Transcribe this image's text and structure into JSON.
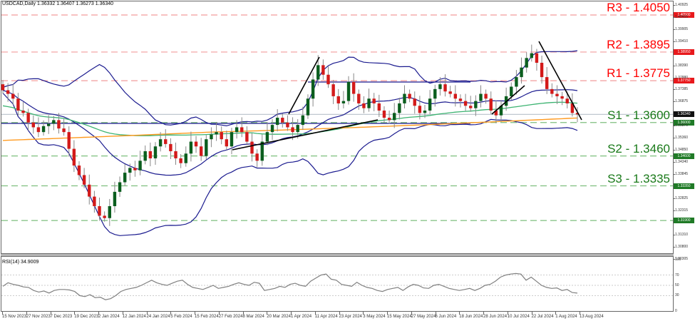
{
  "header": {
    "symbol_line": "USDCAD,Daily  1.36332 1.36407 1.36273 1.36340"
  },
  "rsi_header": "RSI(14) 34.9009",
  "colors": {
    "resistance": "#ff0000",
    "resistance_line": "#f29c9c",
    "support": "#1a7a1a",
    "support_line": "#7fbf7f",
    "bull": "#0b5e1e",
    "bear": "#d31a1a",
    "bollinger": "#1b1b8f",
    "ma_green": "#3cb371",
    "ma_orange": "#ff9a1f",
    "trendline": "#000000",
    "current_price_line": "#c0c8d0",
    "rsi_line": "#808080"
  },
  "levels": [
    {
      "id": "R3",
      "label": "R3 - 1.4050",
      "price": 1.405,
      "type": "resistance",
      "tag": "1.40500"
    },
    {
      "id": "R2",
      "label": "R2 - 1.3895",
      "price": 1.3895,
      "type": "resistance",
      "tag": "1.38950"
    },
    {
      "id": "R1",
      "label": "R1 - 1.3775",
      "price": 1.3775,
      "type": "resistance",
      "tag": "1.37750"
    },
    {
      "id": "S1",
      "label": "S1 - 1.3600",
      "price": 1.36,
      "type": "support",
      "tag": "1.36000"
    },
    {
      "id": "S2",
      "label": "S2 - 1.3460",
      "price": 1.346,
      "type": "support",
      "tag": "1.34600"
    },
    {
      "id": "S3",
      "label": "S3 - 1.3335",
      "price": 1.3335,
      "type": "support",
      "tag": "1.33350"
    },
    {
      "id": "S4",
      "label": "",
      "price": 1.319,
      "type": "support",
      "tag": "1.31900"
    }
  ],
  "current_price": {
    "price": 1.3634,
    "tag": "1.36340"
  },
  "price_axis": [
    "1.40925",
    "1.40415",
    "1.39905",
    "1.39410",
    "1.38390",
    "1.37880",
    "1.37385",
    "1.36875",
    "1.35870",
    "1.35360",
    "1.34850",
    "1.34340",
    "1.33845",
    "1.32825",
    "1.32315",
    "1.31310",
    "1.30800",
    "1.30305"
  ],
  "rsi_axis": [
    "100",
    "70",
    "50",
    "30",
    "0"
  ],
  "date_axis": [
    "15 Nov 2023",
    "27 Nov 2023",
    "7 Dec 2023",
    "19 Dec 2023",
    "2 Jan 2024",
    "12 Jan 2024",
    "24 Jan 2024",
    "5 Feb 2024",
    "15 Feb 2024",
    "27 Feb 2024",
    "8 Mar 2024",
    "20 Mar 2024",
    "1 Apr 2024",
    "11 Apr 2024",
    "23 Apr 2024",
    "3 May 2024",
    "15 May 2024",
    "27 May 2024",
    "6 Jun 2024",
    "18 Jun 2024",
    "28 Jun 2024",
    "10 Jul 2024",
    "22 Jul 2024",
    "1 Aug 2024",
    "13 Aug 2024"
  ],
  "chart_data": {
    "type": "candlestick",
    "title": "USDCAD,Daily",
    "ohlc_last": {
      "open": 1.36332,
      "high": 1.36407,
      "low": 1.36273,
      "close": 1.3634
    },
    "ylim": [
      1.303,
      1.4092
    ],
    "x_range": [
      "15 Nov 2023",
      "16 Aug 2024"
    ],
    "support_resistance": [
      {
        "name": "R3",
        "value": 1.405
      },
      {
        "name": "R2",
        "value": 1.3895
      },
      {
        "name": "R1",
        "value": 1.3775
      },
      {
        "name": "S1",
        "value": 1.36
      },
      {
        "name": "S2",
        "value": 1.346
      },
      {
        "name": "S3",
        "value": 1.3335
      }
    ],
    "close_series": [
      1.3735,
      1.372,
      1.37,
      1.365,
      1.364,
      1.36,
      1.358,
      1.356,
      1.3585,
      1.3595,
      1.361,
      1.3575,
      1.356,
      1.349,
      1.342,
      1.338,
      1.334,
      1.329,
      1.325,
      1.321,
      1.32,
      1.325,
      1.331,
      1.335,
      1.339,
      1.341,
      1.34,
      1.344,
      1.348,
      1.345,
      1.35,
      1.353,
      1.351,
      1.348,
      1.345,
      1.343,
      1.347,
      1.352,
      1.35,
      1.346,
      1.353,
      1.355,
      1.356,
      1.353,
      1.35,
      1.356,
      1.358,
      1.356,
      1.352,
      1.347,
      1.344,
      1.352,
      1.356,
      1.359,
      1.362,
      1.36,
      1.358,
      1.356,
      1.359,
      1.363,
      1.37,
      1.378,
      1.384,
      1.38,
      1.376,
      1.371,
      1.368,
      1.369,
      1.377,
      1.372,
      1.368,
      1.366,
      1.37,
      1.368,
      1.365,
      1.362,
      1.361,
      1.364,
      1.368,
      1.372,
      1.37,
      1.367,
      1.364,
      1.365,
      1.37,
      1.374,
      1.376,
      1.373,
      1.372,
      1.37,
      1.369,
      1.367,
      1.366,
      1.369,
      1.372,
      1.37,
      1.365,
      1.363,
      1.367,
      1.371,
      1.375,
      1.379,
      1.383,
      1.387,
      1.389,
      1.385,
      1.379,
      1.374,
      1.372,
      1.371,
      1.37,
      1.368,
      1.364,
      1.3634
    ],
    "indicators": [
      "Bollinger Bands (20)",
      "Moving Average (green)",
      "Moving Average (orange)",
      "Trendlines"
    ],
    "rsi": {
      "period": 14,
      "last": 34.9009,
      "levels": [
        70,
        50,
        30
      ],
      "ylim": [
        0,
        100
      ],
      "values": [
        48,
        55,
        52,
        50,
        47,
        46,
        40,
        37,
        39,
        35,
        40,
        42,
        42,
        41,
        38,
        30,
        28,
        32,
        26,
        27,
        22,
        24,
        30,
        38,
        42,
        44,
        46,
        50,
        55,
        60,
        55,
        52,
        50,
        54,
        58,
        60,
        52,
        46,
        44,
        42,
        46,
        50,
        44,
        46,
        48,
        52,
        55,
        52,
        50,
        56,
        54,
        40,
        42,
        44,
        48,
        46,
        52,
        54,
        50,
        48,
        58,
        64,
        70,
        72,
        62,
        60,
        52,
        50,
        48,
        56,
        50,
        46,
        44,
        40,
        38,
        42,
        44,
        46,
        40,
        47,
        52,
        50,
        45,
        44,
        50,
        52,
        48,
        44,
        42,
        40,
        42,
        44,
        40,
        44,
        50,
        52,
        58,
        66,
        70,
        72,
        73,
        72,
        60,
        66,
        58,
        50,
        46,
        44,
        45,
        40,
        42,
        36,
        34.9
      ]
    }
  }
}
